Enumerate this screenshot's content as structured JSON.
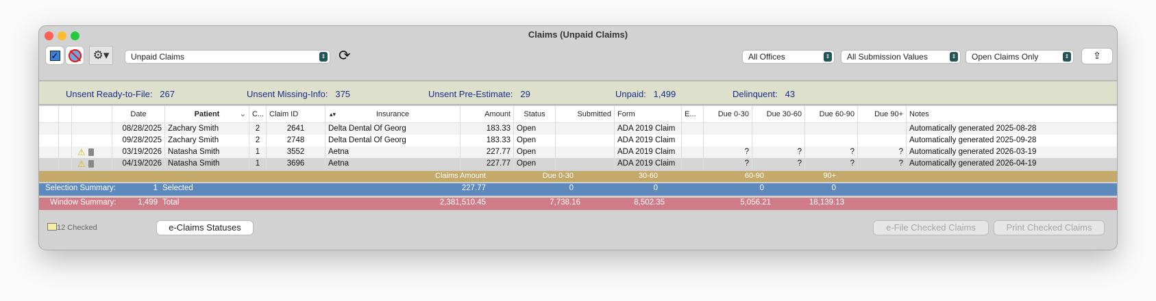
{
  "window": {
    "title": "Claims (Unpaid Claims)"
  },
  "toolbar": {
    "view_select": "Unpaid Claims",
    "office_select": "All Offices",
    "submission_select": "All Submission Values",
    "claims_filter_select": "Open Claims Only"
  },
  "summary": [
    {
      "label": "Unsent Ready-to-File:",
      "value": "267"
    },
    {
      "label": "Unsent Missing-Info:",
      "value": "375"
    },
    {
      "label": "Unsent Pre-Estimate:",
      "value": "29"
    },
    {
      "label": "Unpaid:",
      "value": "1,499"
    },
    {
      "label": "Delinquent:",
      "value": "43"
    }
  ],
  "table": {
    "headers": {
      "date": "Date",
      "patient": "Patient",
      "c": "C...",
      "claim_id": "Claim ID",
      "insurance": "Insurance",
      "amount": "Amount",
      "status": "Status",
      "submitted": "Submitted",
      "form": "Form",
      "e": "E...",
      "due0": "Due 0-30",
      "due30": "Due 30-60",
      "due60": "Due 60-90",
      "due90": "Due 90+",
      "notes": "Notes"
    },
    "rows": [
      {
        "warn": false,
        "date": "08/28/2025",
        "patient": "Zachary Smith",
        "c": "2",
        "claim_id": "2641",
        "insurance": "Delta Dental Of Georg",
        "amount": "183.33",
        "status": "Open",
        "submitted": "",
        "form": "ADA 2019 Claim",
        "e": "",
        "due0": "",
        "due30": "",
        "due60": "",
        "due90": "",
        "notes": "Automatically generated 2025-08-28"
      },
      {
        "warn": false,
        "date": "09/28/2025",
        "patient": "Zachary Smith",
        "c": "2",
        "claim_id": "2748",
        "insurance": "Delta Dental Of Georg",
        "amount": "183.33",
        "status": "Open",
        "submitted": "",
        "form": "ADA 2019 Claim",
        "e": "",
        "due0": "",
        "due30": "",
        "due60": "",
        "due90": "",
        "notes": "Automatically generated 2025-09-28"
      },
      {
        "warn": true,
        "date": "03/19/2026",
        "patient": "Natasha Smith",
        "c": "1",
        "claim_id": "3552",
        "insurance": "Aetna",
        "amount": "227.77",
        "status": "Open",
        "submitted": "",
        "form": "ADA 2019 Claim",
        "e": "",
        "due0": "?",
        "due30": "?",
        "due60": "?",
        "due90": "?",
        "notes": "Automatically generated 2026-03-19"
      },
      {
        "warn": true,
        "date": "04/19/2026",
        "patient": "Natasha Smith",
        "c": "1",
        "claim_id": "3696",
        "insurance": "Aetna",
        "amount": "227.77",
        "status": "Open",
        "submitted": "",
        "form": "ADA 2019 Claim",
        "e": "",
        "due0": "?",
        "due30": "?",
        "due60": "?",
        "due90": "?",
        "notes": "Automatically generated 2026-04-19"
      }
    ]
  },
  "totals_header": {
    "claims_amount": "Claims Amount",
    "due0": "Due 0-30",
    "due30": "30-60",
    "due60": "60-90",
    "due90": "90+"
  },
  "selection_summary": {
    "label": "Selection Summary:",
    "count": "1",
    "count_label": "Selected",
    "amount": "227.77",
    "due0": "0",
    "due30": "0",
    "due60": "0",
    "due90": "0"
  },
  "window_summary": {
    "label": "Window Summary:",
    "count": "1,499",
    "count_label": "Total",
    "amount": "2,381,510.45",
    "due0": "7,738.16",
    "due30": "8,502.35",
    "due60": "5,056.21",
    "due90": "18,139.13"
  },
  "footer": {
    "checked": "12 Checked",
    "eclaims_button": "e-Claims Statuses",
    "efile_button": "e-File Checked Claims",
    "print_button": "Print Checked Claims"
  },
  "colors": {
    "summary_band": "#dde0cb",
    "gold": "#c3a96a",
    "blue": "#5e89bc",
    "pink": "#cf7b88",
    "summary_text": "#1b2b8c"
  }
}
